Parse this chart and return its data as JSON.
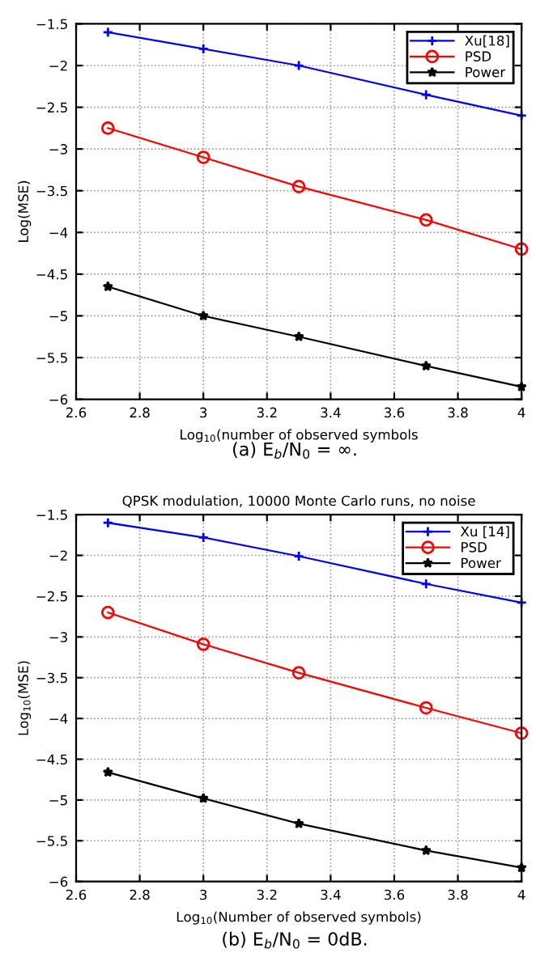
{
  "chart_data": [
    {
      "type": "line",
      "xlabel": "Log$_{10}$(number of observed symbols",
      "ylabel": "Log(MSE)",
      "annotations": [
        "(a) E$_{b}$/N$_{0}$ = ∞."
      ],
      "x": [
        2.7,
        3,
        3.3,
        3.7,
        4
      ],
      "xlim": [
        2.6,
        4
      ],
      "xticks": [
        2.6,
        2.8,
        3,
        3.2,
        3.4,
        3.6,
        3.8,
        4
      ],
      "ylim": [
        -6,
        -1.5
      ],
      "yticks": [
        -6,
        -5.5,
        -5,
        -4.5,
        -4,
        -3.5,
        -3,
        -2.5,
        -2,
        -1.5
      ],
      "grid": true,
      "legend": "top right",
      "line_style": "solid",
      "series": [
        {
          "name": "Xu[18]",
          "color": "#0000ff",
          "marker": "cross",
          "values": [
            -1.6,
            -1.8,
            -2.0,
            -2.35,
            -2.6
          ]
        },
        {
          "name": "PSD",
          "color": "#ff0000",
          "marker": "circle",
          "values": [
            -2.75,
            -3.1,
            -3.45,
            -3.85,
            -4.2
          ]
        },
        {
          "name": "Power",
          "color": "#000000",
          "marker": "star",
          "values": [
            -4.65,
            -5.0,
            -5.25,
            -5.6,
            -5.85
          ]
        }
      ]
    },
    {
      "type": "line",
      "title": "QPSK modulation, 10000 Monte Carlo runs, no noise",
      "xlabel": "Log$_{10}$(Number of observed symbols)",
      "ylabel": "Log$_{10}$(MSE)",
      "annotations": [
        "(b) E$_{b}$/N$_{0}$ = 0dB."
      ],
      "x": [
        2.7,
        3,
        3.3,
        3.7,
        4
      ],
      "xlim": [
        2.6,
        4
      ],
      "xticks": [
        2.6,
        2.8,
        3,
        3.2,
        3.4,
        3.6,
        3.8,
        4
      ],
      "ylim": [
        -6,
        -1.5
      ],
      "yticks": [
        -6,
        -5.5,
        -5,
        -4.5,
        -4,
        -3.5,
        -3,
        -2.5,
        -2,
        -1.5
      ],
      "grid": true,
      "legend": "top right",
      "line_style": "solid",
      "series": [
        {
          "name": "Xu [14]",
          "color": "#0000ff",
          "marker": "cross",
          "values": [
            -1.6,
            -1.78,
            -2.01,
            -2.35,
            -2.58
          ]
        },
        {
          "name": "PSD",
          "color": "#ff0000",
          "marker": "circle",
          "values": [
            -2.7,
            -3.09,
            -3.44,
            -3.87,
            -4.18
          ]
        },
        {
          "name": "Power",
          "color": "#000000",
          "marker": "star",
          "values": [
            -4.66,
            -4.98,
            -5.29,
            -5.62,
            -5.83
          ]
        }
      ]
    }
  ]
}
